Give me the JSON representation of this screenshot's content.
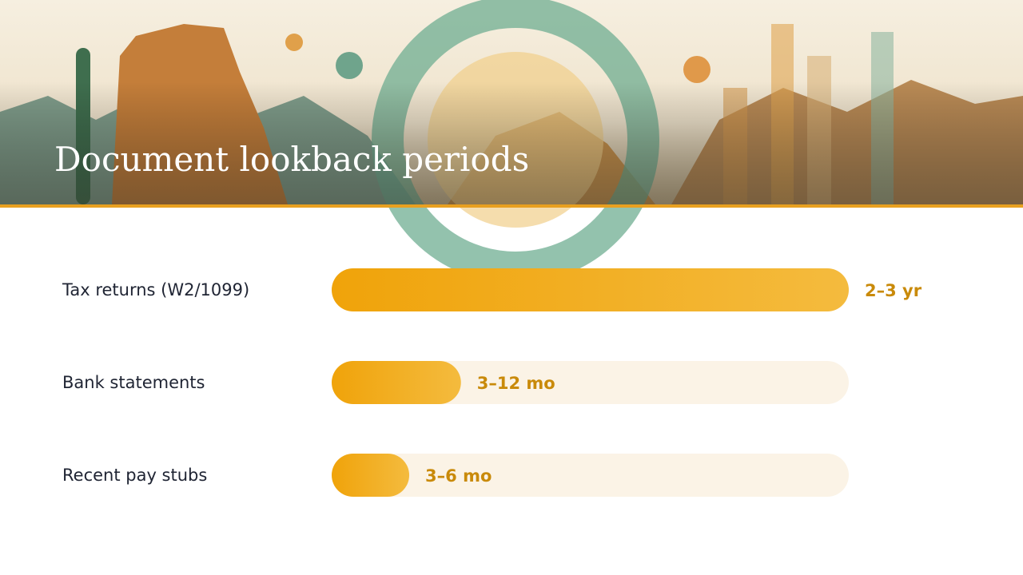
{
  "chart_data": {
    "type": "bar",
    "orientation": "horizontal",
    "title": "Document lookback periods",
    "categories": [
      "Tax returns (W2/1099)",
      "Bank statements",
      "Recent pay stubs"
    ],
    "values": [
      30,
      7.5,
      4.5
    ],
    "value_labels": [
      "2–3 yr",
      "3–12 mo",
      "3–6 mo"
    ],
    "xlim": [
      0,
      30
    ],
    "color": "#f0a30a",
    "track_color": "#fbf3e6"
  }
}
